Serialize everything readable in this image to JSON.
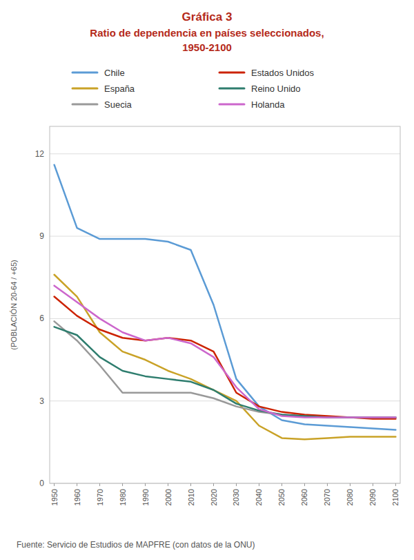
{
  "chart_data": {
    "type": "line",
    "title": "Gráfica 3",
    "subtitle": [
      "Ratio de dependencia en países seleccionados,",
      "1950-2100"
    ],
    "y_label": "(POBLACIÓN 20-64 / +65)",
    "annotations": [
      "Fuente: Servicio de Estudios de MAPFRE (con datos de la ONU)"
    ],
    "x": [
      1950,
      1960,
      1970,
      1980,
      1990,
      2000,
      2010,
      2020,
      2030,
      2040,
      2050,
      2060,
      2070,
      2080,
      2090,
      2100
    ],
    "series": [
      {
        "name": "Chile",
        "color": "#5b9bd5",
        "values": [
          11.6,
          9.3,
          8.9,
          8.9,
          8.9,
          8.8,
          8.5,
          6.5,
          3.8,
          2.8,
          2.3,
          2.15,
          2.1,
          2.05,
          2.0,
          1.95
        ]
      },
      {
        "name": "España",
        "color": "#c9a227",
        "values": [
          7.6,
          6.8,
          5.5,
          4.8,
          4.5,
          4.1,
          3.8,
          3.4,
          3.0,
          2.1,
          1.65,
          1.6,
          1.65,
          1.7,
          1.7,
          1.7
        ]
      },
      {
        "name": "Suecia",
        "color": "#999999",
        "values": [
          5.9,
          5.2,
          4.3,
          3.3,
          3.3,
          3.3,
          3.3,
          3.1,
          2.8,
          2.6,
          2.5,
          2.45,
          2.4,
          2.4,
          2.4,
          2.4
        ]
      },
      {
        "name": "Estados Unidos",
        "color": "#cc2200",
        "values": [
          6.8,
          6.1,
          5.6,
          5.3,
          5.2,
          5.3,
          5.2,
          4.8,
          3.3,
          2.8,
          2.6,
          2.5,
          2.45,
          2.4,
          2.35,
          2.35
        ]
      },
      {
        "name": "Reino Unido",
        "color": "#2e7d6e",
        "values": [
          5.7,
          5.4,
          4.6,
          4.1,
          3.9,
          3.8,
          3.7,
          3.4,
          2.9,
          2.65,
          2.5,
          2.45,
          2.4,
          2.4,
          2.4,
          2.4
        ]
      },
      {
        "name": "Holanda",
        "color": "#cc66cc",
        "values": [
          7.2,
          6.6,
          6.0,
          5.5,
          5.2,
          5.3,
          5.1,
          4.6,
          3.5,
          2.7,
          2.45,
          2.4,
          2.4,
          2.4,
          2.4,
          2.4
        ]
      }
    ],
    "xlim": [
      1948,
      2102
    ],
    "xticks": [
      1950,
      1960,
      1970,
      1980,
      1990,
      2000,
      2010,
      2020,
      2030,
      2040,
      2050,
      2060,
      2070,
      2080,
      2090,
      2100
    ],
    "ylim": [
      0,
      13
    ],
    "yticks": [
      0,
      3,
      6,
      9,
      12
    ],
    "grid": true,
    "legend": "top"
  }
}
